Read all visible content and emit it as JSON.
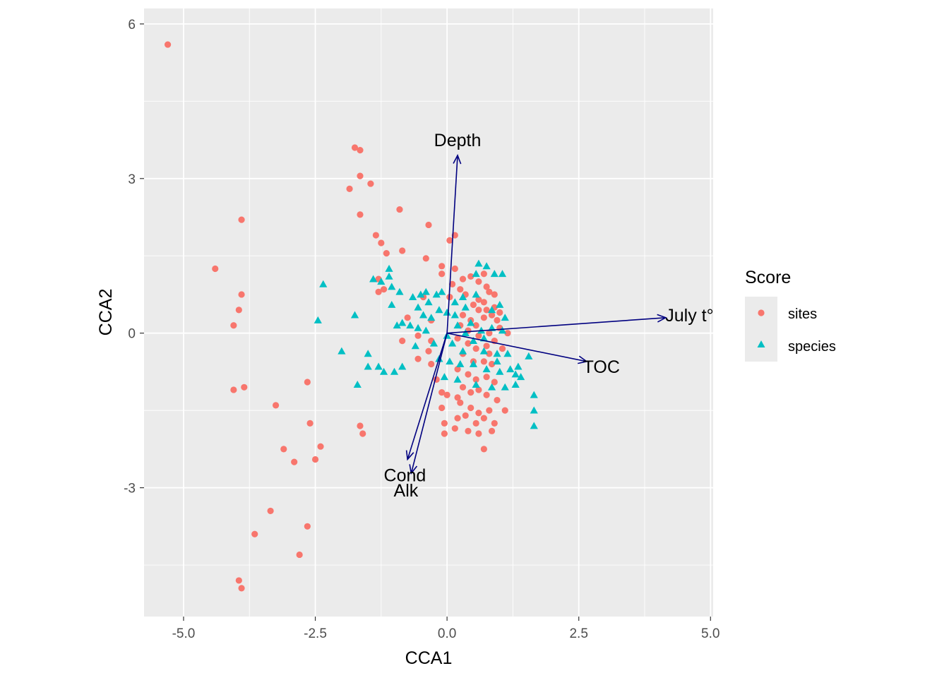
{
  "chart_data": {
    "type": "scatter",
    "xlabel": "CCA1",
    "ylabel": "CCA2",
    "xlim": [
      -5.75,
      5.05
    ],
    "ylim": [
      -5.5,
      6.3
    ],
    "x_ticks": [
      -5.0,
      -2.5,
      0.0,
      2.5,
      5.0
    ],
    "x_tick_labels": [
      "-5.0",
      "-2.5",
      "0.0",
      "2.5",
      "5.0"
    ],
    "y_ticks": [
      -3,
      0,
      3,
      6
    ],
    "y_tick_labels": [
      "-3",
      "0",
      "3",
      "6"
    ],
    "grid": true,
    "legend": {
      "title": "Score",
      "placement": "right",
      "entries": [
        {
          "name": "sites",
          "shape": "circle",
          "color": "#F8766D"
        },
        {
          "name": "species",
          "shape": "triangle",
          "color": "#00BFC4"
        }
      ]
    },
    "series": [
      {
        "name": "sites",
        "color": "#F8766D",
        "shape": "circle",
        "points": [
          [
            -5.3,
            5.6
          ],
          [
            -4.4,
            1.25
          ],
          [
            -3.9,
            2.2
          ],
          [
            -3.9,
            0.75
          ],
          [
            -3.95,
            0.45
          ],
          [
            -4.05,
            0.15
          ],
          [
            -4.05,
            -1.1
          ],
          [
            -3.85,
            -1.05
          ],
          [
            -3.25,
            -1.4
          ],
          [
            -3.1,
            -2.25
          ],
          [
            -2.9,
            -2.5
          ],
          [
            -2.65,
            -0.95
          ],
          [
            -2.6,
            -1.75
          ],
          [
            -2.4,
            -2.2
          ],
          [
            -2.5,
            -2.45
          ],
          [
            -3.35,
            -3.45
          ],
          [
            -3.65,
            -3.9
          ],
          [
            -2.65,
            -3.75
          ],
          [
            -2.8,
            -4.3
          ],
          [
            -3.95,
            -4.8
          ],
          [
            -3.9,
            -4.95
          ],
          [
            -1.75,
            3.6
          ],
          [
            -1.65,
            3.55
          ],
          [
            -1.65,
            3.05
          ],
          [
            -1.45,
            2.9
          ],
          [
            -1.85,
            2.8
          ],
          [
            -1.65,
            2.3
          ],
          [
            -0.9,
            2.4
          ],
          [
            -0.35,
            2.1
          ],
          [
            -1.35,
            1.9
          ],
          [
            -1.25,
            1.75
          ],
          [
            -1.15,
            1.55
          ],
          [
            -0.85,
            1.6
          ],
          [
            -1.3,
            0.8
          ],
          [
            -1.2,
            0.85
          ],
          [
            -1.3,
            1.05
          ],
          [
            -0.4,
            1.45
          ],
          [
            0.05,
            1.8
          ],
          [
            0.15,
            1.9
          ],
          [
            -0.1,
            1.3
          ],
          [
            -0.1,
            1.15
          ],
          [
            -0.75,
            0.3
          ],
          [
            -0.85,
            -0.15
          ],
          [
            -0.55,
            -0.05
          ],
          [
            -0.35,
            -0.35
          ],
          [
            -0.3,
            -0.6
          ],
          [
            -0.2,
            -0.9
          ],
          [
            -0.1,
            -1.15
          ],
          [
            0.0,
            -1.2
          ],
          [
            -0.1,
            -1.45
          ],
          [
            0.2,
            -1.25
          ],
          [
            -0.3,
            0.25
          ],
          [
            -0.3,
            -0.15
          ],
          [
            -0.55,
            -0.5
          ],
          [
            -1.65,
            -1.8
          ],
          [
            -1.6,
            -1.95
          ],
          [
            0.15,
            1.25
          ],
          [
            0.3,
            1.05
          ],
          [
            0.25,
            0.85
          ],
          [
            0.35,
            0.75
          ],
          [
            0.45,
            1.1
          ],
          [
            0.6,
            1.0
          ],
          [
            0.7,
            1.15
          ],
          [
            0.75,
            0.9
          ],
          [
            0.6,
            0.65
          ],
          [
            0.7,
            0.6
          ],
          [
            0.8,
            0.8
          ],
          [
            0.9,
            0.75
          ],
          [
            0.5,
            0.55
          ],
          [
            0.6,
            0.45
          ],
          [
            0.75,
            0.45
          ],
          [
            0.9,
            0.5
          ],
          [
            1.0,
            0.4
          ],
          [
            0.3,
            0.35
          ],
          [
            0.45,
            0.25
          ],
          [
            0.55,
            0.15
          ],
          [
            0.7,
            0.3
          ],
          [
            0.85,
            0.35
          ],
          [
            0.95,
            0.25
          ],
          [
            0.25,
            0.15
          ],
          [
            0.4,
            0.05
          ],
          [
            0.6,
            -0.05
          ],
          [
            0.8,
            0.0
          ],
          [
            1.0,
            0.1
          ],
          [
            0.2,
            -0.1
          ],
          [
            0.4,
            -0.2
          ],
          [
            0.55,
            -0.3
          ],
          [
            0.75,
            -0.25
          ],
          [
            0.9,
            -0.15
          ],
          [
            0.3,
            -0.4
          ],
          [
            0.5,
            -0.55
          ],
          [
            0.7,
            -0.55
          ],
          [
            0.85,
            -0.6
          ],
          [
            0.2,
            -0.7
          ],
          [
            0.4,
            -0.8
          ],
          [
            0.55,
            -0.9
          ],
          [
            0.75,
            -0.85
          ],
          [
            0.9,
            -0.95
          ],
          [
            0.3,
            -1.05
          ],
          [
            0.45,
            -1.15
          ],
          [
            0.6,
            -1.1
          ],
          [
            0.75,
            -1.2
          ],
          [
            0.95,
            -1.3
          ],
          [
            0.25,
            -1.35
          ],
          [
            0.45,
            -1.45
          ],
          [
            0.6,
            -1.55
          ],
          [
            0.8,
            -1.5
          ],
          [
            0.35,
            -1.6
          ],
          [
            0.55,
            -1.75
          ],
          [
            0.7,
            -1.65
          ],
          [
            0.9,
            -1.75
          ],
          [
            0.15,
            -1.85
          ],
          [
            0.4,
            -1.9
          ],
          [
            0.6,
            -1.95
          ],
          [
            0.85,
            -1.9
          ],
          [
            -0.05,
            -1.75
          ],
          [
            0.2,
            -1.65
          ],
          [
            1.1,
            -1.5
          ],
          [
            0.7,
            -2.25
          ],
          [
            -0.05,
            -1.95
          ],
          [
            0.1,
            0.95
          ],
          [
            -0.45,
            0.7
          ],
          [
            0.05,
            0.7
          ],
          [
            1.15,
            0.0
          ],
          [
            1.05,
            -0.3
          ],
          [
            0.8,
            -0.4
          ]
        ]
      },
      {
        "name": "species",
        "color": "#00BFC4",
        "shape": "triangle",
        "points": [
          [
            -2.35,
            0.95
          ],
          [
            -2.45,
            0.25
          ],
          [
            -2.0,
            -0.35
          ],
          [
            -1.75,
            0.35
          ],
          [
            -1.7,
            -1.0
          ],
          [
            -1.5,
            -0.4
          ],
          [
            -1.3,
            -0.65
          ],
          [
            -1.2,
            -0.75
          ],
          [
            -1.4,
            1.05
          ],
          [
            -1.25,
            1.0
          ],
          [
            -1.1,
            1.1
          ],
          [
            -1.1,
            1.25
          ],
          [
            -1.05,
            0.9
          ],
          [
            -0.9,
            0.8
          ],
          [
            -1.05,
            0.55
          ],
          [
            -0.65,
            0.7
          ],
          [
            -0.5,
            0.75
          ],
          [
            -0.4,
            0.8
          ],
          [
            -0.55,
            0.5
          ],
          [
            -0.35,
            0.6
          ],
          [
            -0.2,
            0.75
          ],
          [
            -0.1,
            0.8
          ],
          [
            -0.45,
            0.35
          ],
          [
            -0.3,
            0.3
          ],
          [
            -0.15,
            0.45
          ],
          [
            -0.85,
            0.2
          ],
          [
            -0.7,
            0.15
          ],
          [
            -0.95,
            0.15
          ],
          [
            -0.55,
            0.1
          ],
          [
            -0.4,
            0.05
          ],
          [
            0.0,
            0.4
          ],
          [
            0.15,
            0.6
          ],
          [
            0.3,
            0.7
          ],
          [
            0.35,
            0.5
          ],
          [
            0.55,
            0.75
          ],
          [
            0.55,
            1.15
          ],
          [
            0.6,
            1.35
          ],
          [
            0.75,
            1.3
          ],
          [
            0.9,
            1.15
          ],
          [
            1.05,
            1.15
          ],
          [
            0.85,
            0.45
          ],
          [
            1.0,
            0.55
          ],
          [
            1.1,
            0.3
          ],
          [
            0.2,
            0.15
          ],
          [
            0.45,
            0.2
          ],
          [
            0.65,
            0.05
          ],
          [
            0.85,
            0.1
          ],
          [
            1.05,
            0.05
          ],
          [
            0.1,
            -0.2
          ],
          [
            0.3,
            -0.35
          ],
          [
            0.5,
            -0.15
          ],
          [
            0.7,
            -0.35
          ],
          [
            0.95,
            -0.4
          ],
          [
            1.15,
            -0.4
          ],
          [
            -0.15,
            -0.5
          ],
          [
            0.05,
            -0.55
          ],
          [
            0.25,
            -0.6
          ],
          [
            0.5,
            -0.6
          ],
          [
            0.75,
            -0.7
          ],
          [
            1.0,
            -0.75
          ],
          [
            1.2,
            -0.7
          ],
          [
            1.3,
            -0.8
          ],
          [
            1.35,
            -0.65
          ],
          [
            1.55,
            -0.45
          ],
          [
            1.4,
            -0.85
          ],
          [
            -0.05,
            -0.85
          ],
          [
            0.2,
            -0.9
          ],
          [
            0.55,
            -1.0
          ],
          [
            0.85,
            -1.05
          ],
          [
            1.1,
            -1.05
          ],
          [
            1.3,
            -1.0
          ],
          [
            1.65,
            -1.2
          ],
          [
            1.65,
            -1.5
          ],
          [
            1.65,
            -1.8
          ],
          [
            -0.25,
            -0.2
          ],
          [
            0.0,
            -0.05
          ],
          [
            0.35,
            0.0
          ],
          [
            -1.5,
            -0.65
          ],
          [
            -1.0,
            -0.75
          ],
          [
            -0.85,
            -0.65
          ],
          [
            -0.6,
            -0.25
          ],
          [
            0.15,
            0.35
          ],
          [
            0.7,
            -0.1
          ],
          [
            0.95,
            -0.55
          ]
        ]
      }
    ],
    "vectors": [
      {
        "name": "Depth",
        "x": 0.2,
        "y": 3.45
      },
      {
        "name": "July t°",
        "x": 4.15,
        "y": 0.3
      },
      {
        "name": "TOC",
        "x": 2.65,
        "y": -0.55
      },
      {
        "name": "Cond",
        "x": -0.75,
        "y": -2.45
      },
      {
        "name": "Alk",
        "x": -0.68,
        "y": -2.72
      }
    ],
    "vector_labels": [
      {
        "text": "Depth",
        "x": 0.2,
        "y": 3.75
      },
      {
        "text": "July t°",
        "x": 4.6,
        "y": 0.35
      },
      {
        "text": "TOC",
        "x": 2.93,
        "y": -0.65
      },
      {
        "text": "Cond",
        "x": -0.8,
        "y": -2.75
      },
      {
        "text": "Alk",
        "x": -0.78,
        "y": -3.05
      }
    ]
  }
}
